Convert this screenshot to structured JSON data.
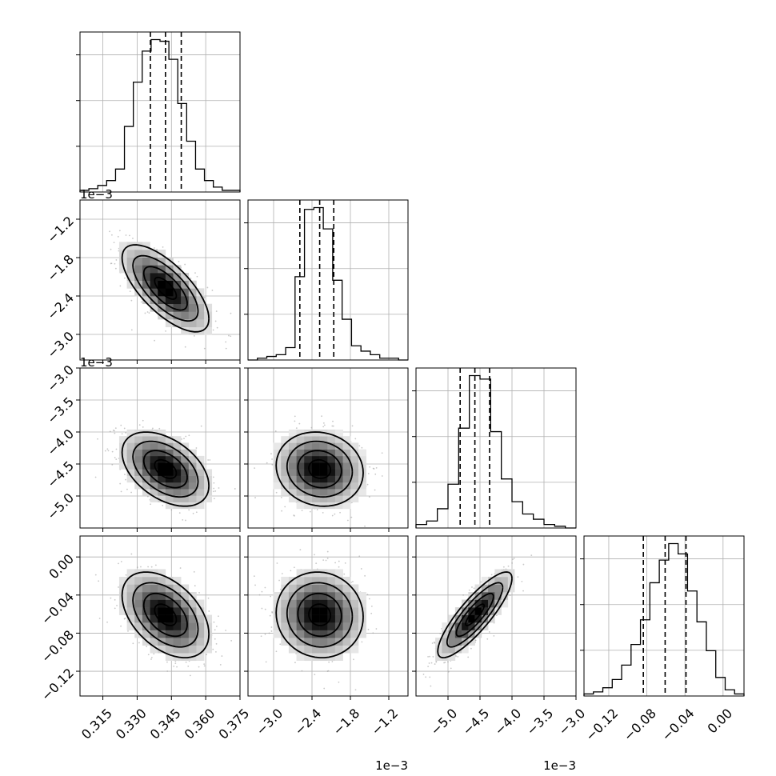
{
  "chart_data": {
    "type": "corner",
    "grid": true,
    "parameters": [
      {
        "key": "p1",
        "range": [
          0.305,
          0.375
        ],
        "ticks": [
          0.315,
          0.33,
          0.345,
          0.36,
          0.375
        ],
        "tick_labels": [
          "0.315",
          "0.330",
          "0.345",
          "0.360",
          "0.375"
        ],
        "offset_label": "",
        "quantiles": [
          0.3358,
          0.3424,
          0.3493
        ],
        "histogram": [
          1,
          2,
          4,
          7,
          14,
          40,
          67,
          86,
          93,
          92,
          81,
          54,
          31,
          14,
          7,
          3,
          1,
          1
        ]
      },
      {
        "key": "p2",
        "range": [
          -3.4,
          -0.9
        ],
        "ticks": [
          -3.0,
          -2.4,
          -1.8,
          -1.2
        ],
        "tick_labels": [
          "−3.0",
          "−2.4",
          "−1.8",
          "−1.2"
        ],
        "offset_label": "1e−3",
        "quantiles": [
          -2.59,
          -2.28,
          -2.06
        ],
        "histogram": [
          0,
          1,
          2,
          3,
          7,
          47,
          85,
          86,
          74,
          45,
          23,
          8,
          5,
          3,
          1,
          1,
          0
        ]
      },
      {
        "key": "p3",
        "range": [
          -5.5,
          -3.0
        ],
        "ticks": [
          -5.0,
          -4.5,
          -4.0,
          -3.5,
          -3.0
        ],
        "tick_labels": [
          "−5.0",
          "−4.5",
          "−4.0",
          "−3.5",
          "−3.0"
        ],
        "offset_label": "1e−3",
        "quantiles": [
          -4.81,
          -4.58,
          -4.35
        ],
        "histogram": [
          2,
          4,
          11,
          25,
          57,
          87,
          85,
          55,
          28,
          15,
          8,
          5,
          2,
          1,
          0
        ]
      },
      {
        "key": "p4",
        "range": [
          -0.146,
          0.022
        ],
        "ticks": [
          -0.12,
          -0.08,
          -0.04,
          0.0
        ],
        "tick_labels": [
          "−0.12",
          "−0.08",
          "−0.04",
          "0.00"
        ],
        "offset_label": "",
        "quantiles": [
          -0.0837,
          -0.0608,
          -0.0389
        ],
        "histogram": [
          1,
          2,
          4,
          8,
          15,
          25,
          37,
          55,
          66,
          74,
          69,
          51,
          36,
          22,
          9,
          3,
          1
        ]
      }
    ],
    "pairs": [
      {
        "x": "p1",
        "y": "p2",
        "mean": [
          0.3424,
          -2.28
        ],
        "sd": [
          0.0095,
          0.34
        ],
        "corr": -0.7
      },
      {
        "x": "p1",
        "y": "p3",
        "mean": [
          0.3424,
          -4.58
        ],
        "sd": [
          0.0095,
          0.29
        ],
        "corr": -0.45
      },
      {
        "x": "p2",
        "y": "p3",
        "mean": [
          -2.28,
          -4.58
        ],
        "sd": [
          0.34,
          0.29
        ],
        "corr": -0.1
      },
      {
        "x": "p1",
        "y": "p4",
        "mean": [
          0.3424,
          -0.0608
        ],
        "sd": [
          0.0095,
          0.0225
        ],
        "corr": -0.45
      },
      {
        "x": "p2",
        "y": "p4",
        "mean": [
          -2.28,
          -0.0608
        ],
        "sd": [
          0.34,
          0.0225
        ],
        "corr": -0.05
      },
      {
        "x": "p3",
        "y": "p4",
        "mean": [
          -4.58,
          -0.0608
        ],
        "sd": [
          0.29,
          0.0225
        ],
        "corr": 0.85
      }
    ]
  }
}
